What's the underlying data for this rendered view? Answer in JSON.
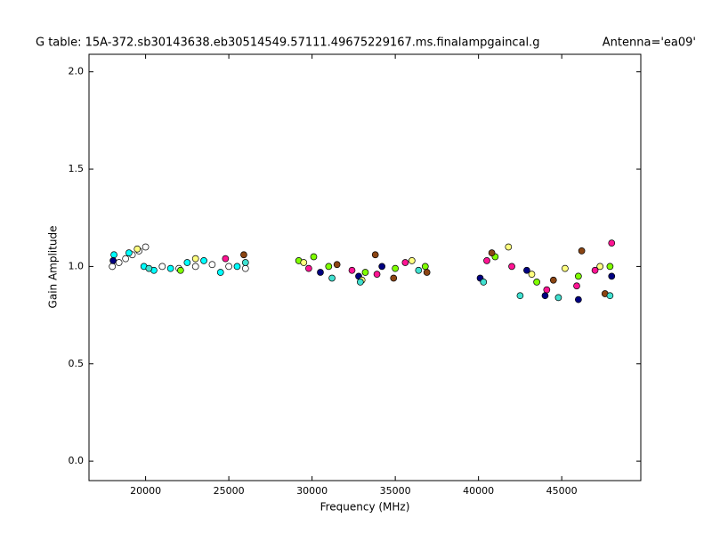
{
  "chart_data": {
    "type": "scatter",
    "title": "G table: 15A-372.sb30143638.eb30514549.57111.49675229167.ms.finalampgaincal.g",
    "annotation": "Antenna='ea09'",
    "x_label": "Frequency (MHz)",
    "y_label": "Gain Amplitude",
    "xlim": [
      16600,
      49750
    ],
    "ylim": [
      -0.1,
      2.09
    ],
    "xticks": [
      20000,
      25000,
      30000,
      35000,
      40000,
      45000
    ],
    "yticks": [
      {
        "value": 0,
        "label": "0.0"
      },
      0.5,
      {
        "value": 1,
        "label": "1.0"
      },
      1.5,
      {
        "value": 2,
        "label": "2.0"
      }
    ],
    "grid": false,
    "series": [
      {
        "color": "#ffffff",
        "x": [
          18000,
          18400,
          18800,
          19200,
          19600,
          20000,
          21000,
          22000,
          23000,
          24000,
          25000,
          26000
        ],
        "y": [
          1.0,
          1.02,
          1.04,
          1.06,
          1.08,
          1.1,
          1.0,
          0.99,
          1.0,
          1.01,
          1.0,
          0.99
        ]
      },
      {
        "color": "#00ffff",
        "x": [
          18100,
          19000,
          19900,
          20500,
          21500,
          22500,
          23500,
          24500,
          25500
        ],
        "y": [
          1.06,
          1.07,
          1.0,
          0.98,
          0.99,
          1.02,
          1.03,
          0.97,
          1.0
        ]
      },
      {
        "color": "#7fff00",
        "x": [
          22100,
          29200,
          30100,
          31000,
          33200,
          35000,
          36800,
          41000,
          43500,
          46000,
          47900
        ],
        "y": [
          0.98,
          1.03,
          1.05,
          1.0,
          0.97,
          0.99,
          1.0,
          1.05,
          0.92,
          0.95,
          1.0
        ]
      },
      {
        "color": "#ff1493",
        "x": [
          24800,
          29800,
          32400,
          33900,
          35600,
          40500,
          42000,
          44100,
          45900,
          47000,
          48000
        ],
        "y": [
          1.04,
          0.99,
          0.98,
          0.96,
          1.02,
          1.03,
          1.0,
          0.88,
          0.9,
          0.98,
          1.12
        ]
      },
      {
        "color": "#8b4513",
        "x": [
          25900,
          31500,
          33800,
          34900,
          36900,
          40800,
          44500,
          46200,
          47600
        ],
        "y": [
          1.06,
          1.01,
          1.06,
          0.94,
          0.97,
          1.07,
          0.93,
          1.08,
          0.86
        ]
      },
      {
        "color": "#000080",
        "x": [
          18050,
          30500,
          32800,
          34200,
          40100,
          42900,
          44000,
          46000,
          48000
        ],
        "y": [
          1.03,
          0.97,
          0.95,
          1.0,
          0.94,
          0.98,
          0.85,
          0.83,
          0.95
        ]
      },
      {
        "color": "#ffff80",
        "x": [
          19500,
          23000,
          29500,
          33000,
          36000,
          41800,
          43200,
          45200,
          47300
        ],
        "y": [
          1.09,
          1.04,
          1.02,
          0.93,
          1.03,
          1.1,
          0.96,
          0.99,
          1.0
        ]
      },
      {
        "color": "#40e0d0",
        "x": [
          20200,
          26000,
          31200,
          32900,
          36400,
          40300,
          42500,
          44800,
          47900
        ],
        "y": [
          0.99,
          1.02,
          0.94,
          0.92,
          0.98,
          0.92,
          0.85,
          0.84,
          0.85
        ]
      }
    ]
  }
}
